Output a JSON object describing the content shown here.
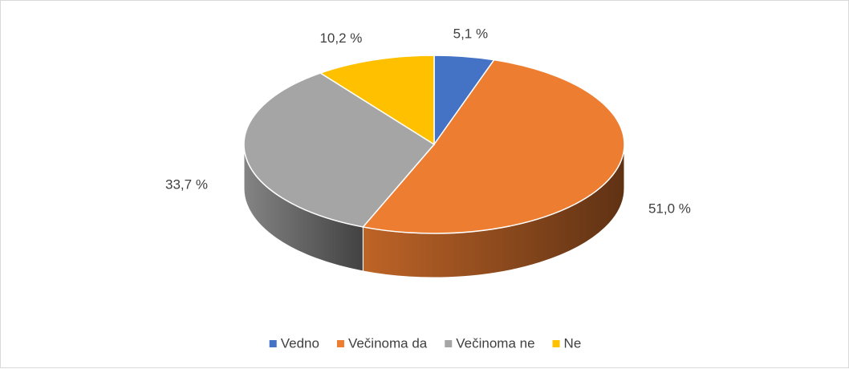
{
  "chart_data": {
    "type": "pie3d",
    "categories": [
      "Vedno",
      "Večinoma da",
      "Večinoma ne",
      "Ne"
    ],
    "values": [
      5.1,
      51.0,
      33.7,
      10.2
    ],
    "value_labels": [
      "5,1 %",
      "51,0 %",
      "33,7 %",
      "10,2 %"
    ],
    "colors": [
      "#4472c4",
      "#ed7d31",
      "#a5a5a5",
      "#ffc000"
    ],
    "legend": "bottom"
  }
}
